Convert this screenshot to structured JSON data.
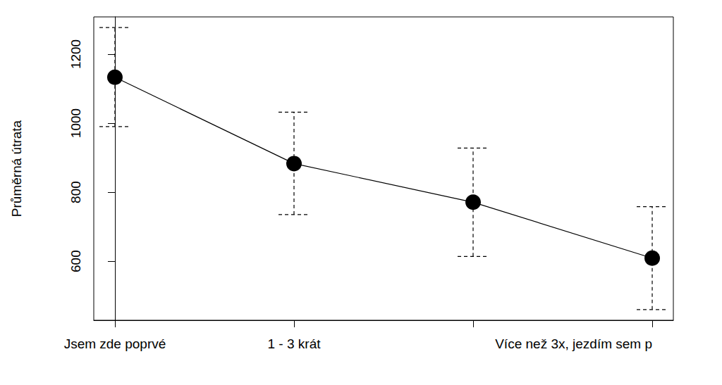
{
  "chart_data": {
    "type": "line",
    "ylabel": "Průměrná útrata",
    "categories": [
      "Jsem zde poprvé",
      "1 - 3 krát",
      null,
      "Více než 3x, jezdím sem p"
    ],
    "values": [
      1133,
      883,
      771,
      609
    ],
    "error_low": [
      990,
      735,
      614,
      460
    ],
    "error_high": [
      1277,
      1032,
      928,
      758
    ],
    "color": "#000000",
    "marker": "circle",
    "line_style": "solid",
    "ylim": [
      429,
      1308
    ],
    "yticks": [
      600,
      800,
      1000,
      1200
    ],
    "grid": false
  }
}
